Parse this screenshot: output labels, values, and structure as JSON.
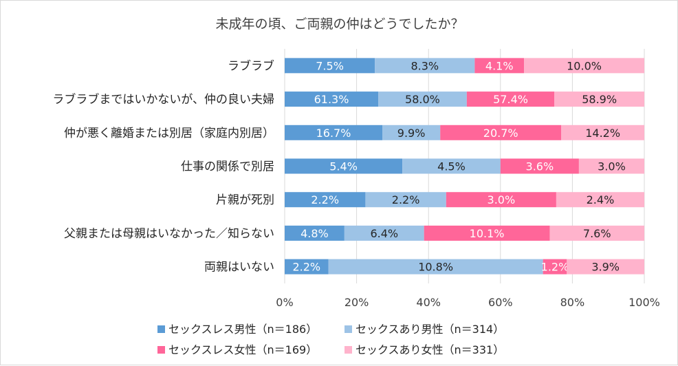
{
  "chart_data": {
    "type": "bar",
    "stacked": "percent",
    "orientation": "horizontal",
    "title": "未成年の頃、ご両親の仲はどうでしたか？",
    "categories": [
      "ラブラブ",
      "ラブラブまではいかないが、仲の良い夫婦",
      "仲が悪く離婚または別居（家庭内別居）",
      "仕事の関係で別居",
      "片親が死別",
      "父親または母親はいなかった／知らない",
      "両親はいない"
    ],
    "series": [
      {
        "name": "セックスレス男性（n＝186）",
        "values": [
          7.5,
          61.3,
          16.7,
          5.4,
          2.2,
          4.8,
          2.2
        ],
        "labels": [
          "7.5%",
          "61.3%",
          "16.7%",
          "5.4%",
          "2.2%",
          "4.8%",
          "2.2%"
        ],
        "color": "#5b9bd5",
        "label_color": "#ffffff"
      },
      {
        "name": "セックスあり男性（n＝314）",
        "values": [
          8.3,
          58.0,
          9.9,
          4.5,
          2.2,
          6.4,
          10.8
        ],
        "labels": [
          "8.3%",
          "58.0%",
          "9.9%",
          "4.5%",
          "2.2%",
          "6.4%",
          "10.8%"
        ],
        "color": "#9dc3e6",
        "label_color": "#262626"
      },
      {
        "name": "セックスレス女性（n＝169）",
        "values": [
          4.1,
          57.4,
          20.7,
          3.6,
          3.0,
          10.1,
          1.2
        ],
        "labels": [
          "4.1%",
          "57.4%",
          "20.7%",
          "3.6%",
          "3.0%",
          "10.1%",
          "1.2%"
        ],
        "color": "#ff6699",
        "label_color": "#ffffff"
      },
      {
        "name": "セックスあり女性（n＝331）",
        "values": [
          10.0,
          58.9,
          14.2,
          3.0,
          2.4,
          7.6,
          3.9
        ],
        "labels": [
          "10.0%",
          "58.9%",
          "14.2%",
          "3.0%",
          "2.4%",
          "7.6%",
          "3.9%"
        ],
        "color": "#ffb3cc",
        "label_color": "#262626"
      }
    ],
    "x_ticks": [
      "0%",
      "20%",
      "40%",
      "60%",
      "80%",
      "100%"
    ],
    "xlim": [
      0,
      100
    ],
    "grid": true,
    "legend_position": "bottom"
  }
}
